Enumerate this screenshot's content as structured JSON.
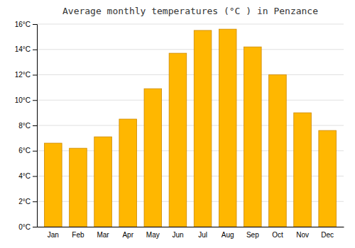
{
  "chart_data": {
    "type": "bar",
    "title": "Average monthly temperatures (°C ) in Penzance",
    "categories": [
      "Jan",
      "Feb",
      "Mar",
      "Apr",
      "May",
      "Jun",
      "Jul",
      "Aug",
      "Sep",
      "Oct",
      "Nov",
      "Dec"
    ],
    "values": [
      6.6,
      6.2,
      7.1,
      8.5,
      10.9,
      13.7,
      15.5,
      15.6,
      14.2,
      12.0,
      9.0,
      7.6
    ],
    "color": "#FFB700",
    "ylim": [
      0,
      16
    ],
    "yticks": [
      {
        "value": 0,
        "label": "0°C"
      },
      {
        "value": 2,
        "label": "2°C"
      },
      {
        "value": 4,
        "label": "4°C"
      },
      {
        "value": 6,
        "label": "6°C"
      },
      {
        "value": 8,
        "label": "8°C"
      },
      {
        "value": 10,
        "label": "10°C"
      },
      {
        "value": 12,
        "label": "12°C"
      },
      {
        "value": 14,
        "label": "14°C"
      },
      {
        "value": 16,
        "label": "16°C"
      }
    ],
    "grid": true
  }
}
